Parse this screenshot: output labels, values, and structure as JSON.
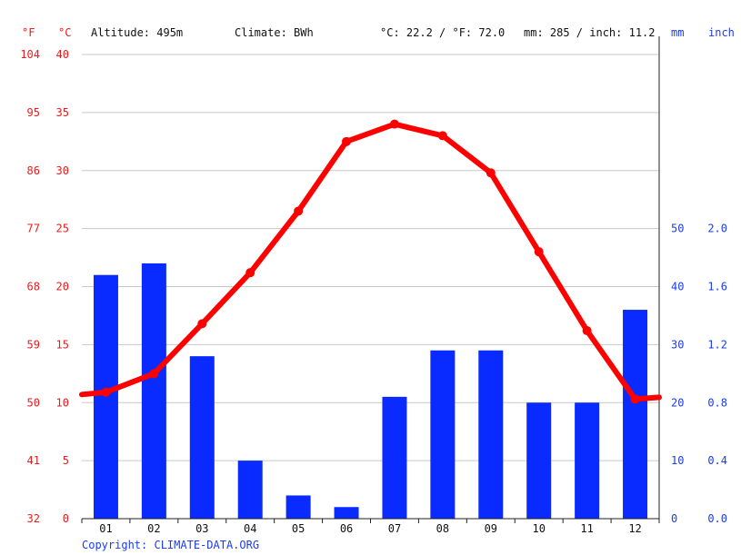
{
  "header": {
    "unit_f": "°F",
    "unit_c": "°C",
    "altitude": "Altitude: 495m",
    "climate": "Climate: BWh",
    "avg_temp": "°C: 22.2 / °F: 72.0",
    "avg_precip": "mm: 285 / inch: 11.2",
    "unit_mm": "mm",
    "unit_inch": "inch"
  },
  "footer": {
    "copyright": "Copyright: CLIMATE-DATA.ORG"
  },
  "colors": {
    "temperature": "#ff0000",
    "precipitation": "#0a2bff",
    "fahrenheit_labels": "#e81c1c",
    "precip_labels": "#1b3cf0"
  },
  "chart_data": {
    "type": "bar",
    "categories": [
      "01",
      "02",
      "03",
      "04",
      "05",
      "06",
      "07",
      "08",
      "09",
      "10",
      "11",
      "12"
    ],
    "series": [
      {
        "type": "bar",
        "axis": "right",
        "unit": "mm",
        "values": [
          42,
          44,
          28,
          10,
          4,
          2,
          21,
          29,
          29,
          20,
          20,
          36
        ]
      },
      {
        "type": "line",
        "axis": "left",
        "unit": "°C",
        "values": [
          10.9,
          12.5,
          16.8,
          21.2,
          26.5,
          32.5,
          34.0,
          33.0,
          29.8,
          23.0,
          16.2,
          10.3
        ]
      }
    ],
    "y_left": {
      "range": [
        0,
        40
      ],
      "ticks_c": [
        "0",
        "5",
        "10",
        "15",
        "20",
        "25",
        "30",
        "35",
        "40"
      ],
      "ticks_f": [
        "32",
        "41",
        "50",
        "59",
        "68",
        "77",
        "86",
        "95",
        "104"
      ]
    },
    "y_right": {
      "range": [
        0,
        80
      ],
      "ticks_mm": [
        "0",
        "10",
        "20",
        "30",
        "40",
        "50"
      ],
      "ticks_inch": [
        "0.0",
        "0.4",
        "0.8",
        "1.2",
        "1.6",
        "2.0"
      ]
    },
    "grid": true
  }
}
